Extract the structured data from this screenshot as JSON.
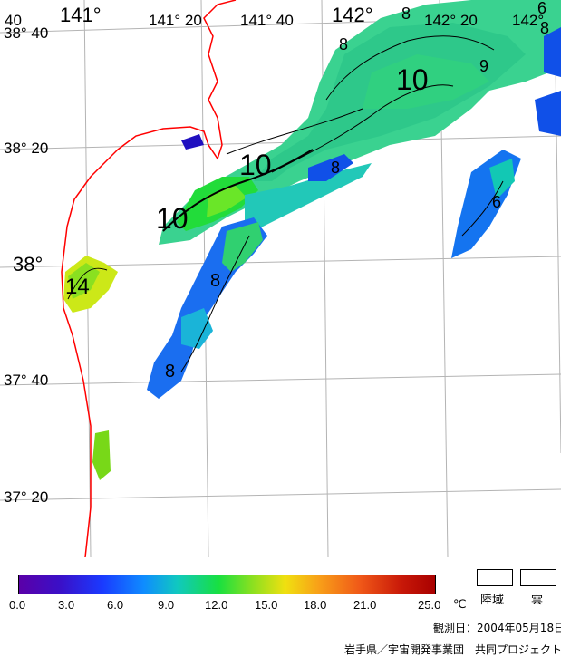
{
  "map": {
    "lon_labels_top": [
      "40",
      "141°",
      "141° 20",
      "141° 40",
      "142°",
      "142° 20",
      "142°"
    ],
    "lat_labels_left": [
      "38° 40",
      "38° 20",
      "38°",
      "37° 40",
      "37° 20"
    ],
    "isotherm_labels": [
      "8",
      "8",
      "10",
      "9",
      "10",
      "10",
      "8",
      "8",
      "6",
      "14",
      "8",
      "8",
      "6"
    ]
  },
  "legend": {
    "scale_ticks": [
      "0.0",
      "3.0",
      "6.0",
      "9.0",
      "12.0",
      "15.0",
      "18.0",
      "21.0",
      "25.0"
    ],
    "unit": "℃",
    "land_label": "陸域",
    "cloud_label": "雲"
  },
  "footer": {
    "observation_date": "観測日：2004年05月18日",
    "credit": "岩手県／宇宙開発事業団　共同プロジェクト"
  },
  "colors": {
    "coastline": "#ff0000",
    "grid": "#b4b4b4",
    "scale_min": "#5a00a8",
    "scale_max": "#a80000"
  }
}
